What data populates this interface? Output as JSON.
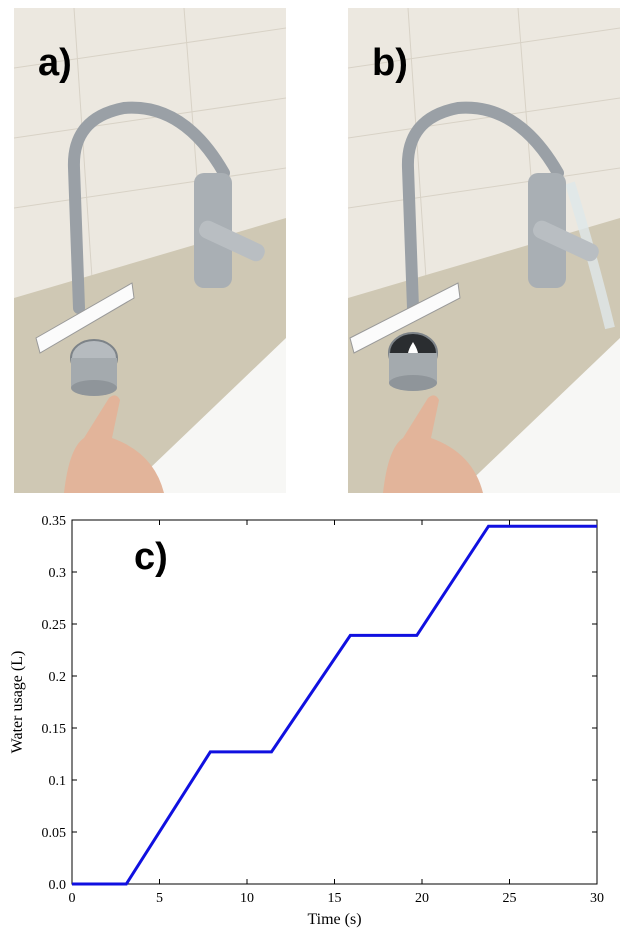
{
  "panels": {
    "a": {
      "label": "a)"
    },
    "b": {
      "label": "b)"
    },
    "c": {
      "label": "c)"
    }
  },
  "colors": {
    "series": "#1010e0",
    "tile": "#e8e4dc",
    "counter": "#cfc8b4",
    "sink": "#f7f7f5",
    "chrome": "#9aa0a6",
    "skin": "#e2b49a"
  },
  "chart_data": {
    "type": "line",
    "title": "",
    "xlabel": "Time (s)",
    "ylabel": "Water usage (L)",
    "xlim": [
      0,
      30
    ],
    "ylim": [
      0,
      0.35
    ],
    "xticks": [
      0,
      5,
      10,
      15,
      20,
      25,
      30
    ],
    "xtick_labels": [
      "0",
      "5",
      "10",
      "15",
      "20",
      "25",
      "30"
    ],
    "yticks": [
      0,
      0.05,
      0.1,
      0.15,
      0.2,
      0.25,
      0.3,
      0.35
    ],
    "ytick_labels": [
      "0.0",
      "0.05",
      "0.1",
      "0.15",
      "0.2",
      "0.25",
      "0.3",
      "0.35"
    ],
    "grid": false,
    "series": [
      {
        "x": [
          0,
          3.1,
          7.9,
          11.4,
          15.9,
          19.7,
          23.8,
          30
        ],
        "y": [
          0,
          0,
          0.127,
          0.127,
          0.239,
          0.239,
          0.344,
          0.344
        ]
      }
    ]
  }
}
